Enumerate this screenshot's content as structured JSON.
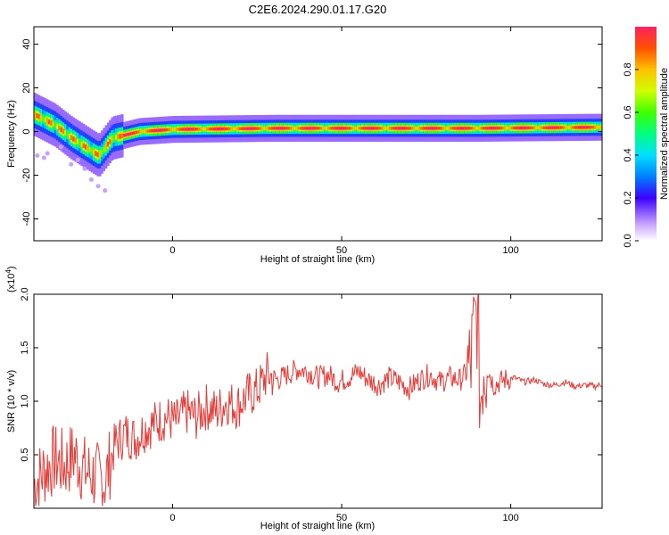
{
  "title": "C2E6.2024.290.01.17.G20",
  "chart_data": [
    {
      "type": "heatmap",
      "xlabel": "Height of straight line (km)",
      "ylabel": "Frequency (Hz)",
      "xlim": [
        -41,
        127
      ],
      "ylim": [
        -50,
        48
      ],
      "x_ticks": [
        0,
        50,
        100
      ],
      "y_ticks": [
        40,
        20,
        0,
        -20,
        -40
      ],
      "colorbar": {
        "label": "Normalized spectral amplitude",
        "range": [
          0,
          1
        ],
        "ticks": [
          "0.0",
          "0.2",
          "0.4",
          "0.6",
          "0.8"
        ],
        "tick_values": [
          0,
          0.2,
          0.4,
          0.6,
          0.8
        ]
      },
      "ridge": {
        "description_points": [
          {
            "x": -40,
            "f": 7
          },
          {
            "x": -35,
            "f": 3
          },
          {
            "x": -30,
            "f": -3
          },
          {
            "x": -25,
            "f": -8
          },
          {
            "x": -22,
            "f": -11
          },
          {
            "x": -18,
            "f": -3
          },
          {
            "x": -10,
            "f": 0
          },
          {
            "x": 0,
            "f": 1
          },
          {
            "x": 30,
            "f": 1.5
          },
          {
            "x": 90,
            "f": 1.5
          },
          {
            "x": 127,
            "f": 2
          }
        ]
      }
    },
    {
      "type": "line",
      "xlabel": "Height of straight line (km)",
      "ylabel": "SNR (10 * v/v)",
      "scale_label": "(x10",
      "scale_exp": "4",
      "scale_close": ")",
      "xlim": [
        -41,
        127
      ],
      "ylim": [
        0,
        2.0
      ],
      "x_ticks": [
        0,
        50,
        100
      ],
      "y_ticks": [
        "0.5",
        "1.0",
        "1.5",
        "2.0"
      ],
      "y_tick_values": [
        0.5,
        1.0,
        1.5,
        2.0
      ],
      "color": "#e83a36",
      "series": [
        {
          "x": [
            -41,
            -38,
            -35,
            -32,
            -29,
            -26,
            -23,
            -20,
            -17,
            -14,
            -11,
            -8,
            -5,
            -2,
            1,
            4,
            7,
            10,
            13,
            16,
            19,
            22,
            25,
            28,
            31,
            34,
            37,
            40,
            43,
            46,
            49,
            52,
            55,
            58,
            61,
            64,
            67,
            70,
            73,
            76,
            79,
            82,
            85,
            88,
            90,
            91,
            92,
            95,
            98,
            101,
            104,
            107,
            110,
            113,
            116,
            119,
            122,
            125,
            127
          ],
          "y": [
            0.22,
            0.35,
            0.45,
            0.4,
            0.5,
            0.35,
            0.3,
            0.25,
            0.6,
            0.7,
            0.65,
            0.75,
            0.8,
            0.85,
            0.8,
            0.9,
            0.85,
            0.95,
            0.9,
            1.0,
            0.95,
            1.05,
            1.1,
            1.25,
            1.2,
            1.25,
            1.3,
            1.28,
            1.22,
            1.25,
            1.18,
            1.22,
            1.28,
            1.2,
            1.15,
            1.22,
            1.18,
            1.12,
            1.2,
            1.25,
            1.18,
            1.22,
            1.2,
            1.3,
            1.85,
            1.0,
            1.4,
            1.15,
            1.2,
            1.22,
            1.18,
            1.2,
            1.16,
            1.15,
            1.18,
            1.14,
            1.15,
            1.14,
            1.16
          ]
        }
      ]
    }
  ]
}
